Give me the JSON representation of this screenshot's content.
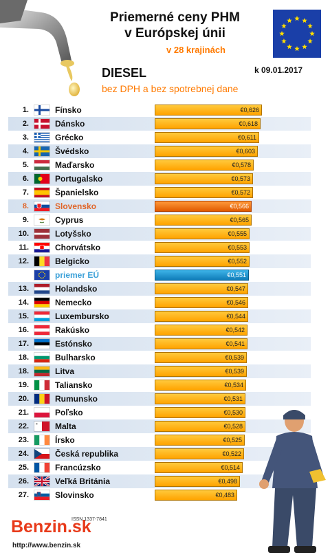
{
  "header": {
    "title_line1": "Priemerné ceny PHM",
    "title_line2": "v Európskej únii",
    "subtitle": "v 28 krajinách",
    "date": "k 09.01.2017",
    "fuel": "DIESEL",
    "note": "bez DPH a bez spotrebnej dane"
  },
  "colors": {
    "bar": "#ffb000",
    "highlight_country": "#e0662a",
    "eu_average": "#1b8fd0",
    "brand": "#e83a1a"
  },
  "chart_data": {
    "type": "bar",
    "orientation": "horizontal",
    "title": "Priemerné ceny PHM v Európskej únii",
    "currency": "€",
    "rows": [
      {
        "rank": "1.",
        "country": "Fínsko",
        "value": 0.626,
        "label": "€0,626",
        "flag": "fi"
      },
      {
        "rank": "2.",
        "country": "Dánsko",
        "value": 0.618,
        "label": "€0,618",
        "flag": "dk"
      },
      {
        "rank": "3.",
        "country": "Grécko",
        "value": 0.611,
        "label": "€0,611",
        "flag": "gr"
      },
      {
        "rank": "4.",
        "country": "Švédsko",
        "value": 0.603,
        "label": "€0,603",
        "flag": "se"
      },
      {
        "rank": "5.",
        "country": "Maďarsko",
        "value": 0.578,
        "label": "€0,578",
        "flag": "hu"
      },
      {
        "rank": "6.",
        "country": "Portugalsko",
        "value": 0.573,
        "label": "€0,573",
        "flag": "pt"
      },
      {
        "rank": "7.",
        "country": "Španielsko",
        "value": 0.572,
        "label": "€0,572",
        "flag": "es"
      },
      {
        "rank": "8.",
        "country": "Slovensko",
        "value": 0.566,
        "label": "€0,566",
        "flag": "sk",
        "highlight": "sk"
      },
      {
        "rank": "9.",
        "country": "Cyprus",
        "value": 0.565,
        "label": "€0,565",
        "flag": "cy"
      },
      {
        "rank": "10.",
        "country": "Lotyšsko",
        "value": 0.555,
        "label": "€0,555",
        "flag": "lv"
      },
      {
        "rank": "11.",
        "country": "Chorvátsko",
        "value": 0.553,
        "label": "€0,553",
        "flag": "hr"
      },
      {
        "rank": "12.",
        "country": "Belgicko",
        "value": 0.552,
        "label": "€0,552",
        "flag": "be"
      },
      {
        "rank": "",
        "country": "priemer EÚ",
        "value": 0.551,
        "label": "€0,551",
        "flag": "eu",
        "highlight": "eu"
      },
      {
        "rank": "13.",
        "country": "Holandsko",
        "value": 0.547,
        "label": "€0,547",
        "flag": "nl"
      },
      {
        "rank": "14.",
        "country": "Nemecko",
        "value": 0.546,
        "label": "€0,546",
        "flag": "de"
      },
      {
        "rank": "15.",
        "country": "Luxembursko",
        "value": 0.544,
        "label": "€0,544",
        "flag": "lu"
      },
      {
        "rank": "16.",
        "country": "Rakúsko",
        "value": 0.542,
        "label": "€0,542",
        "flag": "at"
      },
      {
        "rank": "17.",
        "country": "Estónsko",
        "value": 0.541,
        "label": "€0,541",
        "flag": "ee"
      },
      {
        "rank": "18.",
        "country": "Bulharsko",
        "value": 0.539,
        "label": "€0,539",
        "flag": "bg"
      },
      {
        "rank": "18.",
        "country": "Litva",
        "value": 0.539,
        "label": "€0,539",
        "flag": "lt"
      },
      {
        "rank": "19.",
        "country": "Taliansko",
        "value": 0.534,
        "label": "€0,534",
        "flag": "it"
      },
      {
        "rank": "20.",
        "country": "Rumunsko",
        "value": 0.531,
        "label": "€0,531",
        "flag": "ro"
      },
      {
        "rank": "21.",
        "country": "Poľsko",
        "value": 0.53,
        "label": "€0,530",
        "flag": "pl"
      },
      {
        "rank": "22.",
        "country": "Malta",
        "value": 0.528,
        "label": "€0,528",
        "flag": "mt"
      },
      {
        "rank": "23.",
        "country": "Írsko",
        "value": 0.525,
        "label": "€0,525",
        "flag": "ie"
      },
      {
        "rank": "24.",
        "country": "Česká republika",
        "value": 0.522,
        "label": "€0,522",
        "flag": "cz"
      },
      {
        "rank": "25.",
        "country": "Francúzsko",
        "value": 0.514,
        "label": "€0,514",
        "flag": "fr"
      },
      {
        "rank": "26.",
        "country": "Veľká Británia",
        "value": 0.498,
        "label": "€0,498",
        "flag": "gb"
      },
      {
        "rank": "27.",
        "country": "Slovinsko",
        "value": 0.483,
        "label": "€0,483",
        "flag": "si"
      }
    ]
  },
  "footer": {
    "brand": "Benzin.sk",
    "issn": "ISSN 1337-7841",
    "url": "http://www.benzin.sk"
  }
}
